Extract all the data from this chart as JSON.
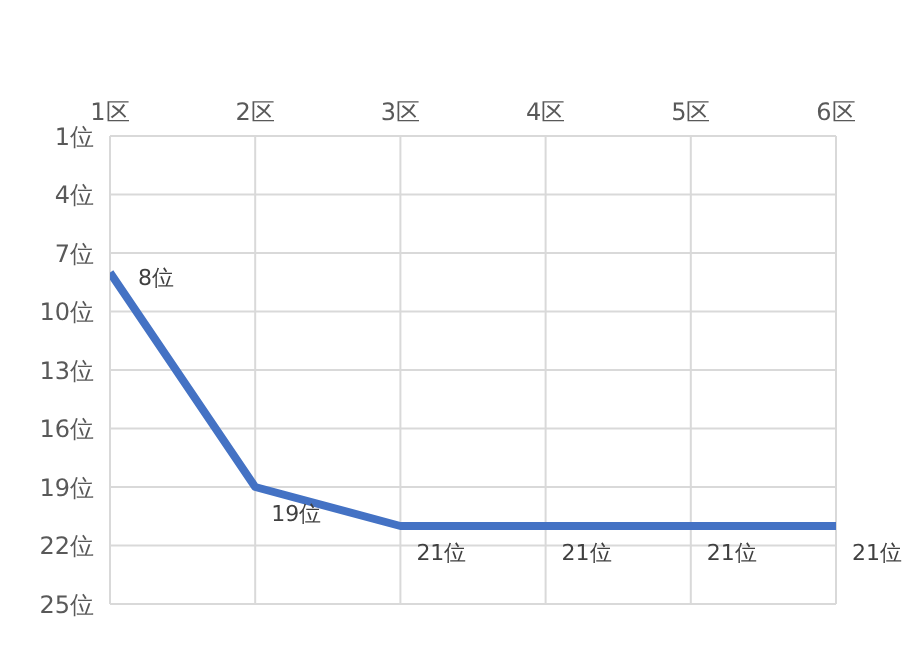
{
  "chart_data": {
    "type": "line",
    "categories": [
      "1区",
      "2区",
      "3区",
      "4区",
      "5区",
      "6区"
    ],
    "series": [
      {
        "color": "#4472c4",
        "values": [
          8,
          19,
          21,
          21,
          21,
          21
        ],
        "value_labels": [
          "8位",
          "19位",
          "21位",
          "21位",
          "21位",
          "21位"
        ]
      }
    ],
    "ylim": [
      25,
      1
    ],
    "yticks": [
      {
        "value": 1,
        "label": "1位"
      },
      {
        "value": 4,
        "label": "4位"
      },
      {
        "value": 7,
        "label": "7位"
      },
      {
        "value": 10,
        "label": "10位"
      },
      {
        "value": 13,
        "label": "13位"
      },
      {
        "value": 16,
        "label": "16位"
      },
      {
        "value": 19,
        "label": "19位"
      },
      {
        "value": 22,
        "label": "22位"
      },
      {
        "value": 25,
        "label": "25位"
      }
    ],
    "grid": true,
    "marker": "none",
    "line_style": "solid",
    "legend": false
  }
}
